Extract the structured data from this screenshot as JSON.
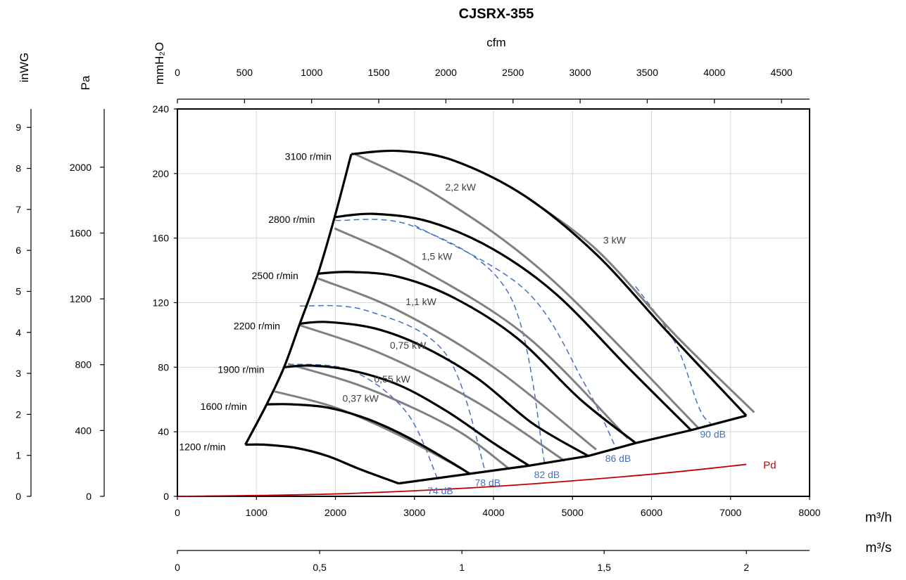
{
  "chart_data": {
    "type": "line",
    "title": "CJSRX-355",
    "units": {
      "x_bottom": "m³/h",
      "x_bottom2": "m³/s",
      "x_top": "cfm",
      "y_main": "mmH₂O",
      "y_pa": "Pa",
      "y_inwg": "inWG"
    },
    "axes": {
      "x_bottom": {
        "range": [
          0,
          8000
        ],
        "ticks": [
          0,
          1000,
          2000,
          3000,
          4000,
          5000,
          6000,
          7000,
          8000
        ],
        "tick_labels": [
          "0",
          "1000",
          "2000",
          "3000",
          "4000",
          "5000",
          "6000",
          "7000",
          "8000"
        ]
      },
      "x_bottom2": {
        "range": [
          0,
          2.222
        ],
        "ticks": [
          0,
          0.5,
          1,
          1.5,
          2
        ],
        "tick_labels": [
          "0",
          "0,5",
          "1",
          "1,5",
          "2"
        ]
      },
      "x_top": {
        "range": [
          0,
          4709
        ],
        "ticks": [
          0,
          500,
          1000,
          1500,
          2000,
          2500,
          3000,
          3500,
          4000,
          4500
        ],
        "tick_labels": [
          "0",
          "500",
          "1000",
          "1500",
          "2000",
          "2500",
          "3000",
          "3500",
          "4000",
          "4500"
        ]
      },
      "y_main": {
        "range": [
          0,
          240
        ],
        "ticks": [
          0,
          40,
          80,
          120,
          160,
          200,
          240
        ],
        "tick_labels": [
          "0",
          "40",
          "80",
          "120",
          "160",
          "200",
          "240"
        ]
      },
      "y_pa": {
        "range": [
          0,
          2354
        ],
        "ticks": [
          0,
          400,
          800,
          1200,
          1600,
          2000
        ],
        "tick_labels": [
          "0",
          "400",
          "800",
          "1200",
          "1600",
          "2000"
        ]
      },
      "y_inwg": {
        "range": [
          0,
          9.45
        ],
        "ticks": [
          0,
          1,
          2,
          3,
          4,
          5,
          6,
          7,
          8,
          9
        ],
        "tick_labels": [
          "0",
          "1",
          "2",
          "3",
          "4",
          "5",
          "6",
          "7",
          "8",
          "9"
        ]
      }
    },
    "grid": true,
    "speed_curves": [
      {
        "name": "3100 r/min",
        "points": [
          [
            2200,
            212
          ],
          [
            2800,
            214
          ],
          [
            3500,
            208
          ],
          [
            4400,
            186
          ],
          [
            5300,
            150
          ],
          [
            6200,
            102
          ],
          [
            7200,
            50
          ]
        ]
      },
      {
        "name": "2800 r/min",
        "points": [
          [
            1990,
            173
          ],
          [
            2500,
            175
          ],
          [
            3200,
            170
          ],
          [
            4000,
            153
          ],
          [
            4800,
            125
          ],
          [
            5700,
            80
          ],
          [
            6500,
            41
          ]
        ]
      },
      {
        "name": "2500 r/min",
        "points": [
          [
            1780,
            138
          ],
          [
            2200,
            139
          ],
          [
            2800,
            136
          ],
          [
            3500,
            123
          ],
          [
            4300,
            98
          ],
          [
            5100,
            60
          ],
          [
            5800,
            33
          ]
        ]
      },
      {
        "name": "2200 r/min",
        "points": [
          [
            1550,
            107
          ],
          [
            1900,
            108
          ],
          [
            2500,
            104
          ],
          [
            3100,
            93
          ],
          [
            3800,
            73
          ],
          [
            4500,
            45
          ],
          [
            5200,
            25
          ]
        ]
      },
      {
        "name": "1900 r/min",
        "points": [
          [
            1350,
            80
          ],
          [
            1700,
            81
          ],
          [
            2200,
            78
          ],
          [
            2800,
            69
          ],
          [
            3400,
            53
          ],
          [
            4000,
            33
          ],
          [
            4450,
            19
          ]
        ]
      },
      {
        "name": "1600 r/min",
        "points": [
          [
            1130,
            57
          ],
          [
            1450,
            57
          ],
          [
            1900,
            55
          ],
          [
            2400,
            48
          ],
          [
            2900,
            37
          ],
          [
            3400,
            23
          ],
          [
            3700,
            14
          ]
        ]
      },
      {
        "name": "1200 r/min",
        "points": [
          [
            860,
            32
          ],
          [
            1100,
            32
          ],
          [
            1500,
            30
          ],
          [
            1900,
            25
          ],
          [
            2300,
            17
          ],
          [
            2800,
            8
          ]
        ]
      }
    ],
    "boundary_left": [
      [
        860,
        32
      ],
      [
        1130,
        57
      ],
      [
        1350,
        80
      ],
      [
        1550,
        107
      ],
      [
        1780,
        138
      ],
      [
        1990,
        173
      ],
      [
        2200,
        212
      ]
    ],
    "boundary_bottom": [
      [
        2800,
        8
      ],
      [
        3700,
        14
      ],
      [
        4450,
        19
      ],
      [
        5200,
        25
      ],
      [
        5800,
        33
      ],
      [
        6500,
        41
      ],
      [
        7200,
        50
      ]
    ],
    "power_curves": [
      {
        "name": "0,37 kW",
        "points": [
          [
            1230,
            65
          ],
          [
            2000,
            55
          ],
          [
            2800,
            38
          ],
          [
            3600,
            17
          ]
        ]
      },
      {
        "name": "0,55 kW",
        "points": [
          [
            1400,
            82
          ],
          [
            2400,
            67
          ],
          [
            3500,
            42
          ],
          [
            4200,
            17
          ]
        ]
      },
      {
        "name": "0,75 kW",
        "points": [
          [
            1550,
            106
          ],
          [
            2600,
            88
          ],
          [
            3800,
            58
          ],
          [
            4900,
            22
          ]
        ]
      },
      {
        "name": "1,1 kW",
        "points": [
          [
            1780,
            135
          ],
          [
            2800,
            115
          ],
          [
            4000,
            80
          ],
          [
            5300,
            29
          ]
        ]
      },
      {
        "name": "1,5 kW",
        "points": [
          [
            1990,
            166
          ],
          [
            3000,
            143
          ],
          [
            4400,
            100
          ],
          [
            5700,
            36
          ]
        ]
      },
      {
        "name": "2,2 kW",
        "points": [
          [
            2250,
            212
          ],
          [
            3300,
            186
          ],
          [
            4700,
            136
          ],
          [
            6600,
            42
          ]
        ]
      },
      {
        "name": "3 kW",
        "points": [
          [
            4400,
            186
          ],
          [
            5300,
            153
          ],
          [
            6300,
            100
          ],
          [
            7300,
            52
          ]
        ]
      }
    ],
    "sound_curves": [
      {
        "name": "74 dB",
        "points": [
          [
            1400,
            82
          ],
          [
            2200,
            78
          ],
          [
            2900,
            52
          ],
          [
            3300,
            10
          ]
        ]
      },
      {
        "name": "78 dB",
        "points": [
          [
            1550,
            118
          ],
          [
            2400,
            115
          ],
          [
            3400,
            88
          ],
          [
            3900,
            15
          ]
        ]
      },
      {
        "name": "82 dB",
        "points": [
          [
            2000,
            171
          ],
          [
            3000,
            167
          ],
          [
            4200,
            125
          ],
          [
            4650,
            20
          ]
        ]
      },
      {
        "name": "86 dB",
        "points": [
          [
            3000,
            168
          ],
          [
            4400,
            128
          ],
          [
            5150,
            70
          ],
          [
            5550,
            30
          ]
        ]
      },
      {
        "name": "90 dB",
        "points": [
          [
            5800,
            130
          ],
          [
            6300,
            95
          ],
          [
            6600,
            55
          ],
          [
            6750,
            45
          ]
        ]
      }
    ],
    "pd_curve": {
      "name": "Pd",
      "points": [
        [
          0,
          0
        ],
        [
          2000,
          1.5
        ],
        [
          4000,
          6.1
        ],
        [
          6000,
          13.7
        ],
        [
          7200,
          19.8
        ]
      ]
    },
    "colors": {
      "speed": "#000000",
      "power": "#808080",
      "sound": "#4472c4",
      "pd": "#c00000",
      "grid": "#d9d9d9"
    }
  }
}
